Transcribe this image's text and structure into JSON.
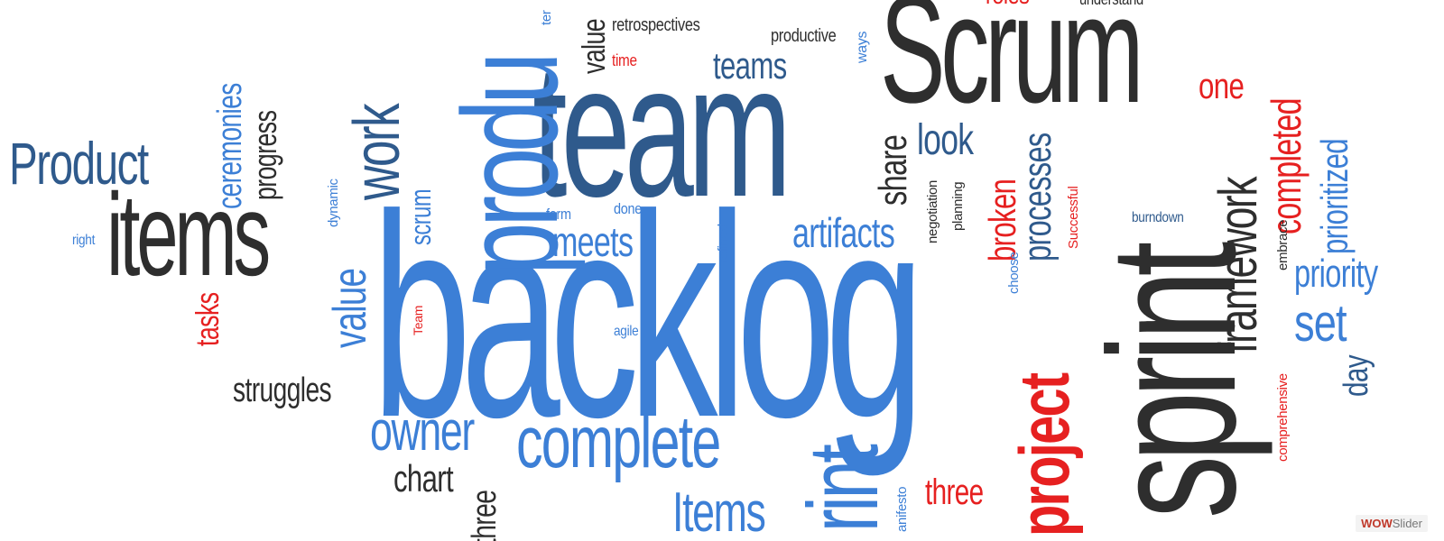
{
  "colors": {
    "dark": "#2e2e2e",
    "blue": "#3c7fd6",
    "navy": "#2f5a8c",
    "red": "#e62020"
  },
  "words": [
    {
      "id": "w-backlog",
      "text": "backlog",
      "color": "blue"
    },
    {
      "id": "w-team",
      "text": "team",
      "color": "navy"
    },
    {
      "id": "w-scrum-big",
      "text": "Scrum",
      "color": "dark"
    },
    {
      "id": "w-sprint",
      "text": "sprint",
      "color": "dark"
    },
    {
      "id": "w-produ",
      "text": "produ",
      "color": "blue"
    },
    {
      "id": "w-items",
      "text": "items",
      "color": "dark"
    },
    {
      "id": "w-product",
      "text": "Product",
      "color": "navy"
    },
    {
      "id": "w-complete",
      "text": "complete",
      "color": "blue"
    },
    {
      "id": "w-owner",
      "text": "owner",
      "color": "blue"
    },
    {
      "id": "w-project",
      "text": "project",
      "color": "red"
    },
    {
      "id": "w-framework",
      "text": "framework",
      "color": "dark"
    },
    {
      "id": "w-rint",
      "text": "rint",
      "color": "blue"
    },
    {
      "id": "w-work",
      "text": "work",
      "color": "navy"
    },
    {
      "id": "w-items-lower",
      "text": "Items",
      "color": "blue"
    },
    {
      "id": "w-artifacts",
      "text": "artifacts",
      "color": "blue"
    },
    {
      "id": "w-meets",
      "text": "meets",
      "color": "blue"
    },
    {
      "id": "w-teams",
      "text": "teams",
      "color": "navy"
    },
    {
      "id": "w-look",
      "text": "look",
      "color": "navy"
    },
    {
      "id": "w-share",
      "text": "share",
      "color": "dark"
    },
    {
      "id": "w-processes",
      "text": "processes",
      "color": "navy"
    },
    {
      "id": "w-broken",
      "text": "broken",
      "color": "red"
    },
    {
      "id": "w-one",
      "text": "one",
      "color": "red"
    },
    {
      "id": "w-completed",
      "text": "completed",
      "color": "red"
    },
    {
      "id": "w-prioritized",
      "text": "prioritized",
      "color": "blue"
    },
    {
      "id": "w-priority",
      "text": "priority",
      "color": "blue"
    },
    {
      "id": "w-set",
      "text": "set",
      "color": "blue"
    },
    {
      "id": "w-day",
      "text": "day",
      "color": "navy"
    },
    {
      "id": "w-ceremonies",
      "text": "ceremonies",
      "color": "blue"
    },
    {
      "id": "w-progress",
      "text": "progress",
      "color": "dark"
    },
    {
      "id": "w-value-left",
      "text": "value",
      "color": "blue"
    },
    {
      "id": "w-value-top",
      "text": "value",
      "color": "dark"
    },
    {
      "id": "w-tasks",
      "text": "tasks",
      "color": "red"
    },
    {
      "id": "w-struggles",
      "text": "struggles",
      "color": "dark"
    },
    {
      "id": "w-chart",
      "text": "chart",
      "color": "dark"
    },
    {
      "id": "w-three-left",
      "text": "three",
      "color": "dark"
    },
    {
      "id": "w-three-right",
      "text": "three",
      "color": "red"
    },
    {
      "id": "w-scrum-small",
      "text": "scrum",
      "color": "blue"
    },
    {
      "id": "w-dynamic",
      "text": "dynamic",
      "color": "blue"
    },
    {
      "id": "w-right",
      "text": "right",
      "color": "blue"
    },
    {
      "id": "w-retrospectives",
      "text": "retrospectives",
      "color": "dark"
    },
    {
      "id": "w-productive",
      "text": "productive",
      "color": "dark"
    },
    {
      "id": "w-time",
      "text": "time",
      "color": "red"
    },
    {
      "id": "w-ways",
      "text": "ways",
      "color": "blue"
    },
    {
      "id": "w-roles",
      "text": "roles",
      "color": "red"
    },
    {
      "id": "w-understand",
      "text": "understand",
      "color": "dark"
    },
    {
      "id": "w-form",
      "text": "form",
      "color": "blue"
    },
    {
      "id": "w-done",
      "text": "done",
      "color": "blue"
    },
    {
      "id": "w-refined",
      "text": "refined",
      "color": "blue"
    },
    {
      "id": "w-agile",
      "text": "agile",
      "color": "blue"
    },
    {
      "id": "w-deliver",
      "text": "deliver",
      "color": "blue"
    },
    {
      "id": "w-team-small",
      "text": "Team",
      "color": "red"
    },
    {
      "id": "w-negotiation",
      "text": "negotiation",
      "color": "dark"
    },
    {
      "id": "w-planning",
      "text": "planning",
      "color": "dark"
    },
    {
      "id": "w-choose",
      "text": "choose",
      "color": "blue"
    },
    {
      "id": "w-successful",
      "text": "Successful",
      "color": "red"
    },
    {
      "id": "w-burndown",
      "text": "burndown",
      "color": "navy"
    },
    {
      "id": "w-embrace",
      "text": "embrace",
      "color": "dark"
    },
    {
      "id": "w-comprehensive",
      "text": "comprehensive",
      "color": "red"
    },
    {
      "id": "w-manifesto",
      "text": "anifesto",
      "color": "blue"
    },
    {
      "id": "w-ter",
      "text": "ter",
      "color": "blue"
    }
  ],
  "watermark": {
    "part1": "WOW",
    "part2": "Slider"
  }
}
